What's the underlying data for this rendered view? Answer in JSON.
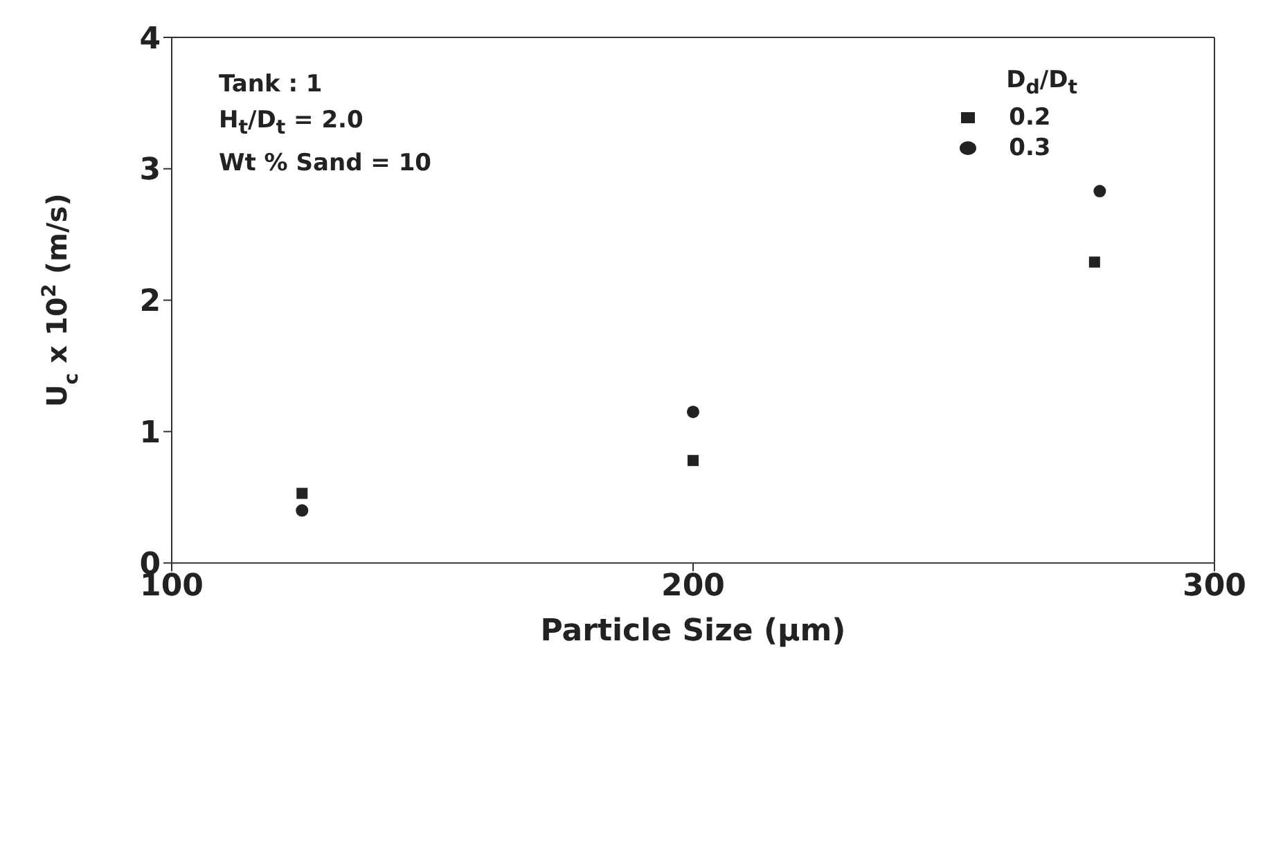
{
  "chart_data": {
    "type": "scatter",
    "xlabel": "Particle Size (μm)",
    "ylabel": "U$_{c}$ x 10$^{2}$ (m/s)",
    "legend_title": "D$_{d}$/D$_{t}$",
    "annotations": [
      "Tank : 1",
      "H$_{t}$/D$_{t}$ = 2.0",
      "Wt % Sand = 10"
    ],
    "xlim": [
      100,
      300
    ],
    "xticks": [
      100,
      200,
      300
    ],
    "ylim": [
      0,
      4
    ],
    "yticks": [
      0,
      1,
      2,
      3,
      4
    ],
    "grid": false,
    "legend": "top right",
    "series": [
      {
        "name": "0.2",
        "color": "#222222",
        "marker": "square",
        "x": [
          125,
          200,
          277
        ],
        "values": [
          0.53,
          0.78,
          2.29
        ]
      },
      {
        "name": "0.3",
        "color": "#222222",
        "marker": "circle",
        "x": [
          125,
          200,
          278
        ],
        "values": [
          0.4,
          1.15,
          2.83
        ]
      }
    ]
  }
}
